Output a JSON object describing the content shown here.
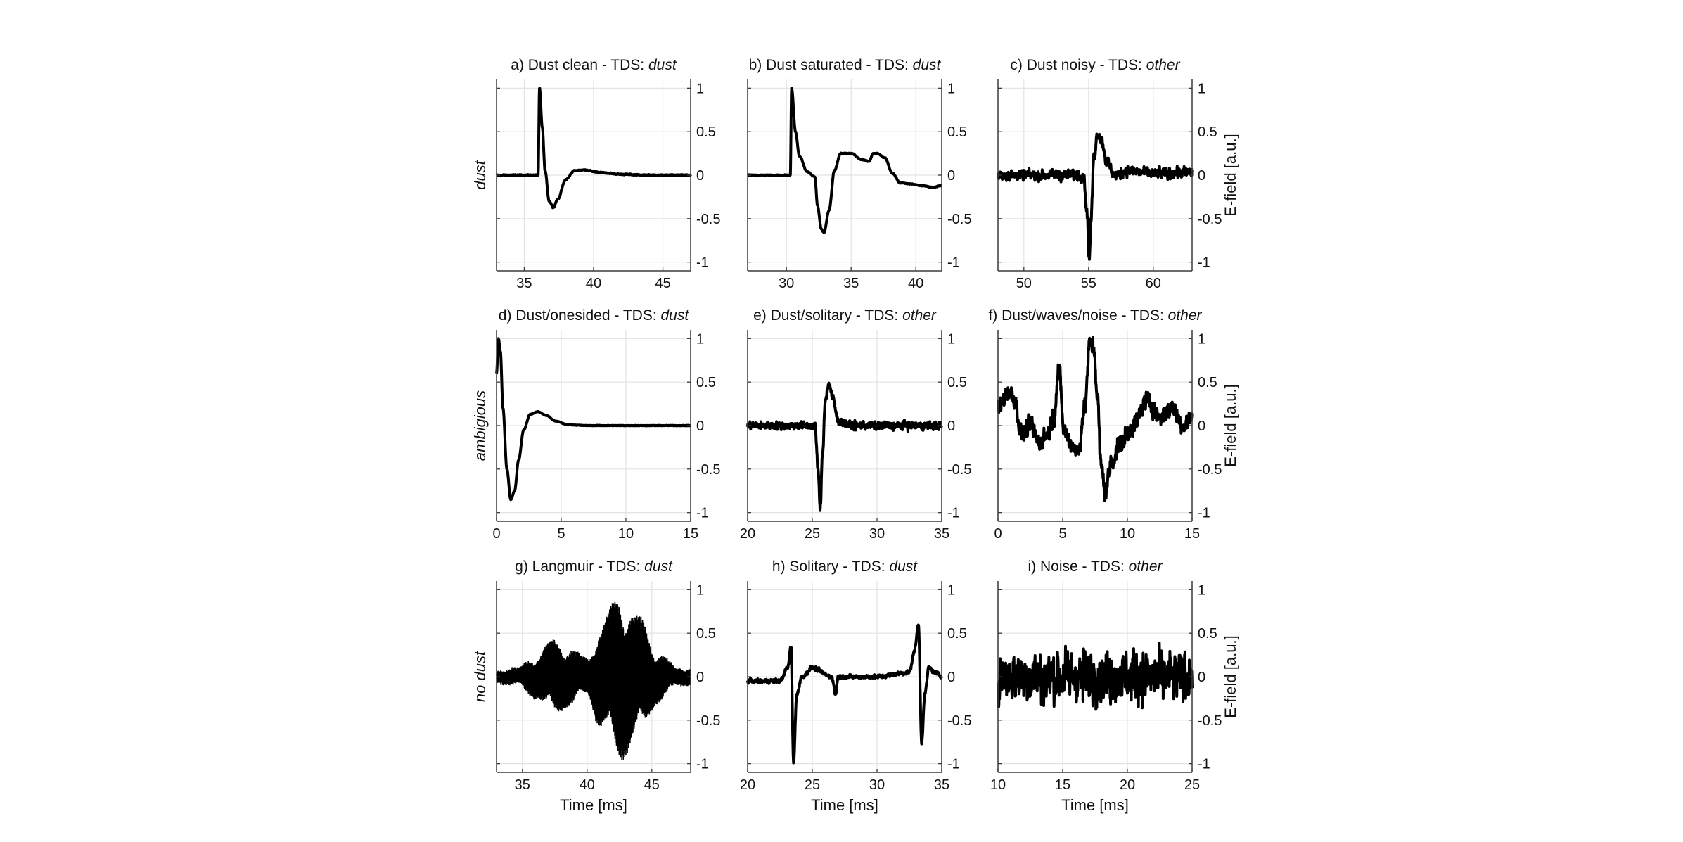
{
  "figure": {
    "xlabel": "Time [ms]",
    "right_ylabel": "E-field [a.u.]",
    "row_labels": [
      "dust",
      "ambigious",
      "no dust"
    ]
  },
  "chart_data": [
    {
      "id": "a",
      "type": "line",
      "title_prefix": "a) Dust clean - TDS: ",
      "title_tds": "dust",
      "xlim": [
        33,
        47
      ],
      "xticks": [
        35,
        40,
        45
      ],
      "ylim": [
        -1.1,
        1.1
      ],
      "yticks": [
        -1,
        -0.5,
        0,
        0.5,
        1
      ],
      "grid": true,
      "line_color": "#000000",
      "signal": {
        "kind": "pulse",
        "x": [
          33,
          36.0,
          36.1,
          36.3,
          36.5,
          36.8,
          37.1,
          37.4,
          38.0,
          38.6,
          39.3,
          40.5,
          42,
          44,
          47
        ],
        "y": [
          0,
          0,
          1.0,
          0.55,
          0.05,
          -0.3,
          -0.37,
          -0.28,
          -0.05,
          0.05,
          0.06,
          0.03,
          0.01,
          0.0,
          0
        ],
        "noise": 0.008
      }
    },
    {
      "id": "b",
      "type": "line",
      "title_prefix": "b) Dust saturated - TDS: ",
      "title_tds": "dust",
      "xlim": [
        27,
        42
      ],
      "xticks": [
        30,
        35,
        40
      ],
      "ylim": [
        -1.1,
        1.1
      ],
      "yticks": [
        -1,
        -0.5,
        0,
        0.5,
        1
      ],
      "grid": true,
      "line_color": "#000000",
      "signal": {
        "kind": "pulse",
        "x": [
          27,
          30.3,
          30.4,
          30.7,
          31.0,
          31.6,
          32.2,
          32.4,
          32.7,
          32.9,
          33.3,
          33.7,
          34.2,
          35.0,
          35.8,
          36.4,
          36.7,
          37.0,
          37.6,
          38.2,
          38.8,
          39.5,
          40.5,
          41.3,
          42
        ],
        "y": [
          0,
          0,
          1.0,
          0.5,
          0.22,
          0.04,
          -0.02,
          -0.35,
          -0.62,
          -0.66,
          -0.4,
          0.05,
          0.25,
          0.25,
          0.18,
          0.16,
          0.25,
          0.25,
          0.2,
          0.02,
          -0.09,
          -0.1,
          -0.12,
          -0.14,
          -0.12
        ],
        "noise": 0.006
      }
    },
    {
      "id": "c",
      "type": "line",
      "title_prefix": "c) Dust noisy - TDS: ",
      "title_tds": "other",
      "xlim": [
        48,
        63
      ],
      "xticks": [
        50,
        55,
        60
      ],
      "ylim": [
        -1.1,
        1.1
      ],
      "yticks": [
        -1,
        -0.5,
        0,
        0.5,
        1
      ],
      "grid": true,
      "line_color": "#000000",
      "signal": {
        "kind": "pulse",
        "x": [
          48,
          54.6,
          54.9,
          55.05,
          55.2,
          55.4,
          55.7,
          56.0,
          56.4,
          57.0,
          58,
          60,
          63
        ],
        "y": [
          0,
          0,
          -0.45,
          -0.98,
          -0.5,
          0.2,
          0.48,
          0.4,
          0.15,
          0.0,
          0.05,
          0.02,
          0.03
        ],
        "noise": 0.08
      }
    },
    {
      "id": "d",
      "type": "line",
      "title_prefix": "d) Dust/onesided - TDS: ",
      "title_tds": "dust",
      "xlim": [
        0,
        15
      ],
      "xticks": [
        0,
        5,
        10,
        15
      ],
      "ylim": [
        -1.1,
        1.1
      ],
      "yticks": [
        -1,
        -0.5,
        0,
        0.5,
        1
      ],
      "grid": true,
      "line_color": "#000000",
      "signal": {
        "kind": "pulse",
        "x": [
          0,
          0.15,
          0.3,
          0.5,
          0.8,
          1.1,
          1.4,
          1.7,
          2.1,
          2.6,
          3.2,
          3.8,
          4.6,
          5.5,
          7,
          9,
          12,
          15
        ],
        "y": [
          0.6,
          1.0,
          0.85,
          0.2,
          -0.5,
          -0.85,
          -0.75,
          -0.4,
          -0.05,
          0.13,
          0.16,
          0.12,
          0.05,
          0.01,
          0.0,
          0.0,
          0.0,
          0.0
        ],
        "noise": 0.004
      }
    },
    {
      "id": "e",
      "type": "line",
      "title_prefix": "e) Dust/solitary - TDS: ",
      "title_tds": "other",
      "xlim": [
        20,
        35
      ],
      "xticks": [
        20,
        25,
        30,
        35
      ],
      "ylim": [
        -1.1,
        1.1
      ],
      "yticks": [
        -1,
        -0.5,
        0,
        0.5,
        1
      ],
      "grid": true,
      "line_color": "#000000",
      "signal": {
        "kind": "pulse",
        "x": [
          20,
          25.2,
          25.45,
          25.6,
          25.8,
          26.0,
          26.3,
          26.6,
          27.0,
          28,
          30,
          35
        ],
        "y": [
          0,
          0,
          -0.5,
          -0.97,
          -0.3,
          0.3,
          0.48,
          0.3,
          0.05,
          0.0,
          0.0,
          0.0
        ],
        "noise": 0.06
      }
    },
    {
      "id": "f",
      "type": "line",
      "title_prefix": "f) Dust/waves/noise - TDS: ",
      "title_tds": "other",
      "xlim": [
        0,
        15
      ],
      "xticks": [
        0,
        5,
        10,
        15
      ],
      "ylim": [
        -1.1,
        1.1
      ],
      "yticks": [
        -1,
        -0.5,
        0,
        0.5,
        1
      ],
      "grid": true,
      "line_color": "#000000",
      "signal": {
        "kind": "pulse",
        "x": [
          0,
          0.8,
          1.3,
          1.8,
          2.5,
          3.2,
          3.8,
          4.3,
          4.7,
          5.1,
          5.6,
          6.2,
          6.7,
          7.1,
          7.4,
          7.7,
          7.95,
          8.3,
          8.8,
          9.5,
          10.5,
          11.5,
          12.5,
          13.5,
          14.3,
          15
        ],
        "y": [
          0.2,
          0.4,
          0.3,
          -0.1,
          0.0,
          -0.2,
          -0.1,
          0.1,
          0.65,
          -0.05,
          -0.2,
          -0.3,
          0.2,
          0.95,
          0.9,
          0.3,
          -0.45,
          -0.75,
          -0.4,
          -0.2,
          0.0,
          0.3,
          0.1,
          0.2,
          0.0,
          0.1
        ],
        "noise": 0.14
      }
    },
    {
      "id": "g",
      "type": "line",
      "title_prefix": "g) Langmuir - TDS: ",
      "title_tds": "dust",
      "xlim": [
        33,
        48
      ],
      "xticks": [
        35,
        40,
        45
      ],
      "ylim": [
        -1.1,
        1.1
      ],
      "yticks": [
        -1,
        -0.5,
        0,
        0.5,
        1
      ],
      "grid": true,
      "line_color": "#000000",
      "signal": {
        "kind": "wavepacket",
        "x": [
          33,
          34.5,
          36,
          37.5,
          38.5,
          40,
          41,
          42.5,
          44,
          45.5,
          47,
          48
        ],
        "y": [
          0.07,
          0.1,
          0.25,
          0.45,
          0.35,
          0.22,
          0.6,
          0.98,
          0.7,
          0.3,
          0.1,
          0.1
        ]
      }
    },
    {
      "id": "h",
      "type": "line",
      "title_prefix": "h) Solitary - TDS: ",
      "title_tds": "dust",
      "xlim": [
        20,
        35
      ],
      "xticks": [
        20,
        25,
        30,
        35
      ],
      "ylim": [
        -1.1,
        1.1
      ],
      "yticks": [
        -1,
        -0.5,
        0,
        0.5,
        1
      ],
      "grid": true,
      "line_color": "#000000",
      "signal": {
        "kind": "pulse",
        "x": [
          20,
          22.5,
          23.1,
          23.35,
          23.55,
          23.8,
          24.2,
          25,
          26.5,
          26.8,
          27.0,
          28,
          30,
          32.5,
          32.9,
          33.2,
          33.45,
          33.7,
          34.0,
          34.5,
          35
        ],
        "y": [
          -0.05,
          -0.05,
          0.1,
          0.35,
          -0.98,
          -0.2,
          0.0,
          0.1,
          0.0,
          -0.2,
          0.0,
          0.0,
          0.0,
          0.05,
          0.3,
          0.6,
          -0.75,
          -0.2,
          0.1,
          0.05,
          0.0
        ],
        "noise": 0.03
      }
    },
    {
      "id": "i",
      "type": "line",
      "title_prefix": "i) Noise - TDS: ",
      "title_tds": "other",
      "xlim": [
        10,
        25
      ],
      "xticks": [
        10,
        15,
        20,
        25
      ],
      "ylim": [
        -1.1,
        1.1
      ],
      "yticks": [
        -1,
        -0.5,
        0,
        0.5,
        1
      ],
      "grid": true,
      "line_color": "#000000",
      "signal": {
        "kind": "noise",
        "x": [
          10,
          25
        ],
        "y": [
          0,
          0
        ],
        "noise": 0.38
      }
    }
  ]
}
